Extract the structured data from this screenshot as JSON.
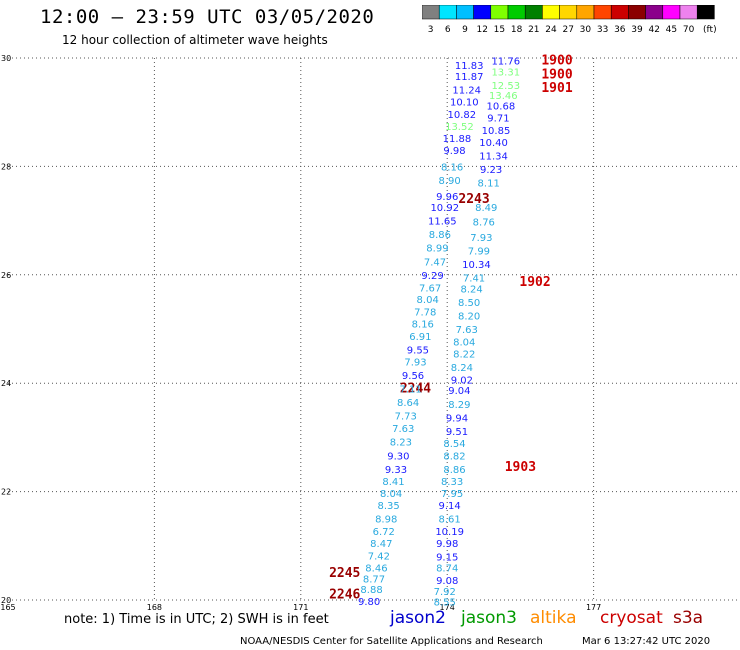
{
  "header": {
    "title": "12:00 – 23:59 UTC 03/05/2020",
    "subtitle": "12 hour collection of altimeter wave heights"
  },
  "colorbar": {
    "labels": [
      "3",
      "6",
      "9",
      "12",
      "15",
      "18",
      "21",
      "24",
      "27",
      "30",
      "33",
      "36",
      "39",
      "42",
      "45",
      "70",
      "(ft)"
    ],
    "colors": [
      "#808080",
      "#00e5ff",
      "#00bfff",
      "#0000ff",
      "#7fff00",
      "#00cc00",
      "#008000",
      "#ffff00",
      "#ffd700",
      "#ffa500",
      "#ff4500",
      "#cc0000",
      "#8b0000",
      "#8b008b",
      "#ff00ff",
      "#ee82ee",
      "#000000"
    ]
  },
  "footer": {
    "note": "note: 1) Time is in UTC; 2) SWH is in feet",
    "satellites": [
      {
        "name": "jason2",
        "color": "#0000cc"
      },
      {
        "name": "jason3",
        "color": "#009900"
      },
      {
        "name": "altika",
        "color": "#ff8c00"
      },
      {
        "name": "cryosat",
        "color": "#cc0000"
      },
      {
        "name": "s3a",
        "color": "#990000"
      }
    ],
    "credit": "NOAA/NESDIS Center for Satellite Applications and Research",
    "stamp": "Mar  6 13:27:42 UTC 2020"
  },
  "chart_data": {
    "type": "scatter",
    "xlim": [
      165,
      180
    ],
    "ylim": [
      20,
      30
    ],
    "xticks": [
      "165",
      "168",
      "171",
      "174",
      "177"
    ],
    "yticks": [
      "20",
      "22",
      "24",
      "26",
      "28",
      "30"
    ],
    "grid": true,
    "points": [
      {
        "x": 176.25,
        "y": 29.95,
        "label": "1900",
        "color": "#cc0000"
      },
      {
        "x": 176.25,
        "y": 29.7,
        "label": "1900",
        "color": "#cc0000"
      },
      {
        "x": 176.25,
        "y": 29.45,
        "label": "1901",
        "color": "#cc0000"
      },
      {
        "x": 175.8,
        "y": 25.87,
        "label": "1902",
        "color": "#cc0000"
      },
      {
        "x": 175.5,
        "y": 22.45,
        "label": "1903",
        "color": "#cc0000"
      },
      {
        "x": 174.55,
        "y": 27.4,
        "label": "2243",
        "color": "#990000"
      },
      {
        "x": 173.35,
        "y": 23.9,
        "label": "2244",
        "color": "#990000"
      },
      {
        "x": 171.9,
        "y": 20.5,
        "label": "2245",
        "color": "#990000"
      },
      {
        "x": 171.9,
        "y": 20.1,
        "label": "2246",
        "color": "#990000"
      },
      {
        "x": 175.2,
        "y": 29.95,
        "label": "11.76",
        "color": "#1a1aff"
      },
      {
        "x": 174.45,
        "y": 29.87,
        "label": "11.83",
        "color": "#1a1aff"
      },
      {
        "x": 175.2,
        "y": 29.75,
        "label": "13.31",
        "color": "#7fff7f"
      },
      {
        "x": 174.45,
        "y": 29.67,
        "label": "11.87",
        "color": "#1a1aff"
      },
      {
        "x": 175.2,
        "y": 29.5,
        "label": "12.53",
        "color": "#7fff7f"
      },
      {
        "x": 174.4,
        "y": 29.42,
        "label": "11.24",
        "color": "#1a1aff"
      },
      {
        "x": 175.15,
        "y": 29.32,
        "label": "13.46",
        "color": "#7fff7f"
      },
      {
        "x": 174.35,
        "y": 29.2,
        "label": "10.10",
        "color": "#1a1aff"
      },
      {
        "x": 175.1,
        "y": 29.12,
        "label": "10.68",
        "color": "#1a1aff"
      },
      {
        "x": 174.3,
        "y": 28.97,
        "label": "10.82",
        "color": "#1a1aff"
      },
      {
        "x": 175.05,
        "y": 28.9,
        "label": "9.71",
        "color": "#1a1aff"
      },
      {
        "x": 174.25,
        "y": 28.75,
        "label": "13.52",
        "color": "#7fff7f"
      },
      {
        "x": 175.0,
        "y": 28.67,
        "label": "10.85",
        "color": "#1a1aff"
      },
      {
        "x": 174.2,
        "y": 28.52,
        "label": "11.88",
        "color": "#1a1aff"
      },
      {
        "x": 174.95,
        "y": 28.45,
        "label": "10.40",
        "color": "#1a1aff"
      },
      {
        "x": 174.15,
        "y": 28.3,
        "label": "9.98",
        "color": "#1a1aff"
      },
      {
        "x": 174.95,
        "y": 28.2,
        "label": "11.34",
        "color": "#1a1aff"
      },
      {
        "x": 174.1,
        "y": 28.0,
        "label": "8.16",
        "color": "#29a9df"
      },
      {
        "x": 174.9,
        "y": 27.95,
        "label": "9.23",
        "color": "#1a1aff"
      },
      {
        "x": 174.05,
        "y": 27.75,
        "label": "8.90",
        "color": "#29a9df"
      },
      {
        "x": 174.85,
        "y": 27.7,
        "label": "8.11",
        "color": "#29a9df"
      },
      {
        "x": 174.0,
        "y": 27.45,
        "label": "9.96",
        "color": "#1a1aff"
      },
      {
        "x": 173.95,
        "y": 27.25,
        "label": "10.92",
        "color": "#1a1aff"
      },
      {
        "x": 174.8,
        "y": 27.25,
        "label": "8.49",
        "color": "#29a9df"
      },
      {
        "x": 173.9,
        "y": 27.0,
        "label": "11.65",
        "color": "#1a1aff"
      },
      {
        "x": 174.75,
        "y": 26.98,
        "label": "8.76",
        "color": "#29a9df"
      },
      {
        "x": 173.85,
        "y": 26.75,
        "label": "8.86",
        "color": "#29a9df"
      },
      {
        "x": 174.7,
        "y": 26.7,
        "label": "7.93",
        "color": "#29a9df"
      },
      {
        "x": 173.8,
        "y": 26.5,
        "label": "8.99",
        "color": "#29a9df"
      },
      {
        "x": 174.65,
        "y": 26.45,
        "label": "7.99",
        "color": "#29a9df"
      },
      {
        "x": 173.75,
        "y": 26.25,
        "label": "7.47",
        "color": "#29a9df"
      },
      {
        "x": 174.6,
        "y": 26.2,
        "label": "10.34",
        "color": "#1a1aff"
      },
      {
        "x": 173.7,
        "y": 26.0,
        "label": "9.29",
        "color": "#1a1aff"
      },
      {
        "x": 174.55,
        "y": 25.95,
        "label": "7.41",
        "color": "#29a9df"
      },
      {
        "x": 173.65,
        "y": 25.77,
        "label": "7.67",
        "color": "#29a9df"
      },
      {
        "x": 174.5,
        "y": 25.75,
        "label": "8.24",
        "color": "#29a9df"
      },
      {
        "x": 173.6,
        "y": 25.55,
        "label": "8.04",
        "color": "#29a9df"
      },
      {
        "x": 174.45,
        "y": 25.5,
        "label": "8.50",
        "color": "#29a9df"
      },
      {
        "x": 173.55,
        "y": 25.32,
        "label": "7.78",
        "color": "#29a9df"
      },
      {
        "x": 174.45,
        "y": 25.25,
        "label": "8.20",
        "color": "#29a9df"
      },
      {
        "x": 173.5,
        "y": 25.1,
        "label": "8.16",
        "color": "#29a9df"
      },
      {
        "x": 174.4,
        "y": 25.0,
        "label": "7.63",
        "color": "#29a9df"
      },
      {
        "x": 173.45,
        "y": 24.87,
        "label": "6.91",
        "color": "#29a9df"
      },
      {
        "x": 174.35,
        "y": 24.77,
        "label": "8.04",
        "color": "#29a9df"
      },
      {
        "x": 173.4,
        "y": 24.62,
        "label": "9.55",
        "color": "#1a1aff"
      },
      {
        "x": 174.35,
        "y": 24.55,
        "label": "8.22",
        "color": "#29a9df"
      },
      {
        "x": 173.35,
        "y": 24.4,
        "label": "7.93",
        "color": "#29a9df"
      },
      {
        "x": 174.3,
        "y": 24.3,
        "label": "8.24",
        "color": "#29a9df"
      },
      {
        "x": 173.3,
        "y": 24.15,
        "label": "9.56",
        "color": "#1a1aff"
      },
      {
        "x": 174.3,
        "y": 24.07,
        "label": "9.02",
        "color": "#1a1aff"
      },
      {
        "x": 173.25,
        "y": 23.9,
        "label": "7.11",
        "color": "#29a9df"
      },
      {
        "x": 174.25,
        "y": 23.87,
        "label": "9.04",
        "color": "#1a1aff"
      },
      {
        "x": 173.2,
        "y": 23.65,
        "label": "8.64",
        "color": "#29a9df"
      },
      {
        "x": 174.25,
        "y": 23.62,
        "label": "8.29",
        "color": "#29a9df"
      },
      {
        "x": 173.15,
        "y": 23.4,
        "label": "7.73",
        "color": "#29a9df"
      },
      {
        "x": 174.2,
        "y": 23.37,
        "label": "9.94",
        "color": "#1a1aff"
      },
      {
        "x": 173.1,
        "y": 23.17,
        "label": "7.63",
        "color": "#29a9df"
      },
      {
        "x": 174.2,
        "y": 23.12,
        "label": "9.51",
        "color": "#1a1aff"
      },
      {
        "x": 173.05,
        "y": 22.92,
        "label": "8.23",
        "color": "#29a9df"
      },
      {
        "x": 174.15,
        "y": 22.9,
        "label": "8.54",
        "color": "#29a9df"
      },
      {
        "x": 173.0,
        "y": 22.67,
        "label": "9.30",
        "color": "#1a1aff"
      },
      {
        "x": 174.15,
        "y": 22.67,
        "label": "8.82",
        "color": "#29a9df"
      },
      {
        "x": 172.95,
        "y": 22.42,
        "label": "9.33",
        "color": "#1a1aff"
      },
      {
        "x": 174.15,
        "y": 22.42,
        "label": "8.86",
        "color": "#29a9df"
      },
      {
        "x": 172.9,
        "y": 22.2,
        "label": "8.41",
        "color": "#29a9df"
      },
      {
        "x": 174.1,
        "y": 22.2,
        "label": "8.33",
        "color": "#29a9df"
      },
      {
        "x": 172.85,
        "y": 21.97,
        "label": "8.04",
        "color": "#29a9df"
      },
      {
        "x": 174.1,
        "y": 21.97,
        "label": "7.95",
        "color": "#29a9df"
      },
      {
        "x": 172.8,
        "y": 21.75,
        "label": "8.35",
        "color": "#29a9df"
      },
      {
        "x": 174.05,
        "y": 21.75,
        "label": "9.14",
        "color": "#1a1aff"
      },
      {
        "x": 172.75,
        "y": 21.5,
        "label": "8.98",
        "color": "#29a9df"
      },
      {
        "x": 174.05,
        "y": 21.5,
        "label": "8.61",
        "color": "#29a9df"
      },
      {
        "x": 172.7,
        "y": 21.27,
        "label": "6.72",
        "color": "#29a9df"
      },
      {
        "x": 174.05,
        "y": 21.27,
        "label": "10.19",
        "color": "#1a1aff"
      },
      {
        "x": 172.65,
        "y": 21.05,
        "label": "8.47",
        "color": "#29a9df"
      },
      {
        "x": 174.0,
        "y": 21.05,
        "label": "9.98",
        "color": "#1a1aff"
      },
      {
        "x": 172.6,
        "y": 20.82,
        "label": "7.42",
        "color": "#29a9df"
      },
      {
        "x": 174.0,
        "y": 20.8,
        "label": "9.15",
        "color": "#1a1aff"
      },
      {
        "x": 172.55,
        "y": 20.6,
        "label": "8.46",
        "color": "#29a9df"
      },
      {
        "x": 174.0,
        "y": 20.6,
        "label": "8.74",
        "color": "#29a9df"
      },
      {
        "x": 172.5,
        "y": 20.4,
        "label": "8.77",
        "color": "#29a9df"
      },
      {
        "x": 174.0,
        "y": 20.37,
        "label": "9.08",
        "color": "#1a1aff"
      },
      {
        "x": 172.45,
        "y": 20.2,
        "label": "8.88",
        "color": "#29a9df"
      },
      {
        "x": 173.95,
        "y": 20.17,
        "label": "7.92",
        "color": "#29a9df"
      },
      {
        "x": 172.4,
        "y": 19.98,
        "label": "9.80",
        "color": "#1a1aff"
      },
      {
        "x": 173.95,
        "y": 19.97,
        "label": "8.55",
        "color": "#29a9df"
      }
    ]
  }
}
